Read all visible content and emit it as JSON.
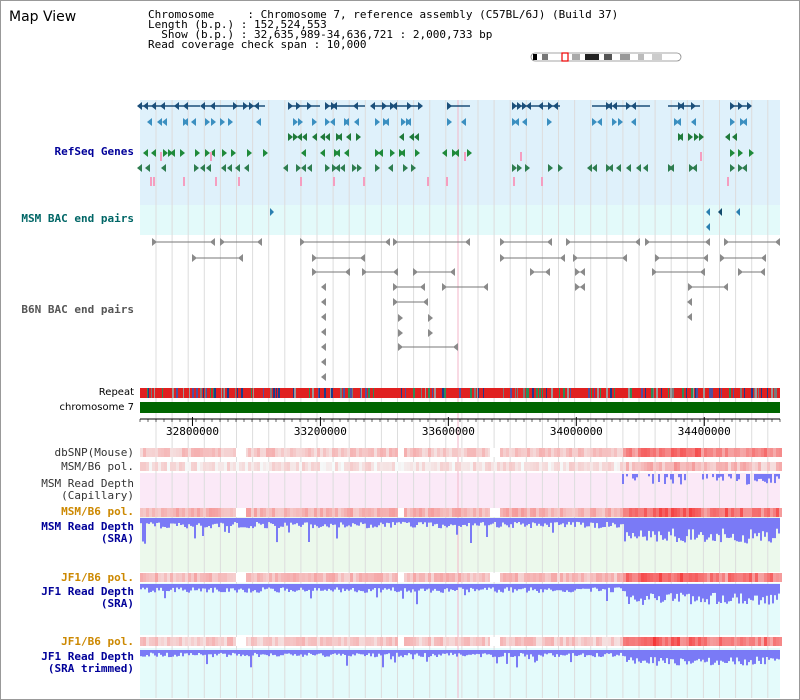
{
  "title": "Map View",
  "header": {
    "chromosome_line": "Chromosome     : Chromosome 7, reference assembly (C57BL/6J) (Build 37)",
    "length_line": "Length (b.p.) : 152,524,553",
    "show_line": "  Show (b.p.) : 32,635,989-34,636,721 : 2,000,733 bp",
    "coverage_line": "Read coverage check span : 10,000"
  },
  "colors": {
    "refseq_bg": "#dff1fb",
    "msm_bac_bg": "#e3fafa",
    "polymorphism_bg": "#fbe9f7",
    "msm_depth_bg": "#ecf9ec",
    "jf1_depth_bg": "#e4fbfb",
    "chromosome_bar": "#006600",
    "depth_fill": "#7a7af6",
    "label_blue": "#000099",
    "label_teal": "#006666",
    "label_orange": "#cc8800"
  },
  "tracks": {
    "refseq": "RefSeq Genes",
    "msm_bac": "MSM BAC end pairs",
    "b6n_bac": "B6N BAC end pairs",
    "repeat": "Repeat",
    "chromosome": "chromosome 7",
    "dbsnp": "dbSNP(Mouse)",
    "msm_b6_pol_1": "MSM/B6 pol.",
    "msm_depth_cap_1": "MSM Read Depth",
    "msm_depth_cap_2": "(Capillary)",
    "msm_b6_pol_2": "MSM/B6 pol.",
    "msm_depth_sra_1": "MSM Read Depth",
    "msm_depth_sra_2": "(SRA)",
    "jf1_b6_pol_1": "JF1/B6 pol.",
    "jf1_depth_sra_1": "JF1 Read Depth",
    "jf1_depth_sra_2": "(SRA)",
    "jf1_b6_pol_2": "JF1/B6 pol.",
    "jf1_depth_trim_1": "JF1 Read Depth",
    "jf1_depth_trim_2": "(SRA trimmed)"
  },
  "chart_data": {
    "type": "genome-browser",
    "axis_ticks": [
      "32800000",
      "33200000",
      "33600000",
      "34000000",
      "34400000"
    ],
    "axis_tick_values": [
      32800000,
      33200000,
      33600000,
      34000000,
      34400000
    ],
    "xlim": [
      32635989,
      34636721
    ]
  }
}
